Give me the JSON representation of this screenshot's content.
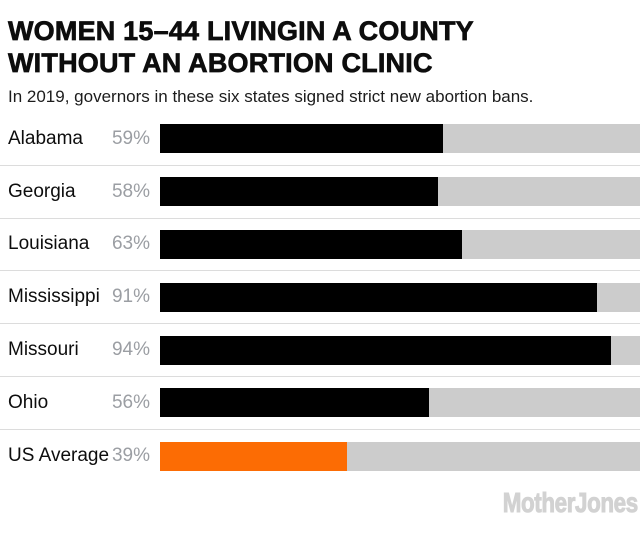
{
  "header": {
    "title_line1": "WOMEN 15–44 LIVINGIN A COUNTY",
    "title_line2": "WITHOUT AN ABORTION CLINIC",
    "subtitle": "In 2019, governors in these six states signed strict new abortion bans."
  },
  "chart_data": {
    "type": "bar",
    "orientation": "horizontal",
    "title": "WOMEN 15–44 LIVINGIN A COUNTY WITHOUT AN ABORTION CLINIC",
    "subtitle": "In 2019, governors in these six states signed strict new abortion bans.",
    "categories": [
      "Alabama",
      "Georgia",
      "Louisiana",
      "Mississippi",
      "Missouri",
      "Ohio",
      "US Average"
    ],
    "values": [
      59,
      58,
      63,
      91,
      94,
      56,
      39
    ],
    "value_labels": [
      "59%",
      "58%",
      "63%",
      "91%",
      "94%",
      "56%",
      "39%"
    ],
    "xlim": [
      0,
      100
    ],
    "bar_colors": [
      "#000000",
      "#000000",
      "#000000",
      "#000000",
      "#000000",
      "#000000",
      "#fc6c04"
    ],
    "highlight_category": "US Average",
    "grid": false,
    "legend": false
  },
  "footer": {
    "logo_text": "MotherJones"
  },
  "colors": {
    "ink": "#0d0d0d",
    "muted": "#9b9ea3",
    "track": "#cccccc",
    "separator": "#dcdcdc",
    "logo": "#d2d2d2",
    "highlight": "#fc6c04"
  }
}
